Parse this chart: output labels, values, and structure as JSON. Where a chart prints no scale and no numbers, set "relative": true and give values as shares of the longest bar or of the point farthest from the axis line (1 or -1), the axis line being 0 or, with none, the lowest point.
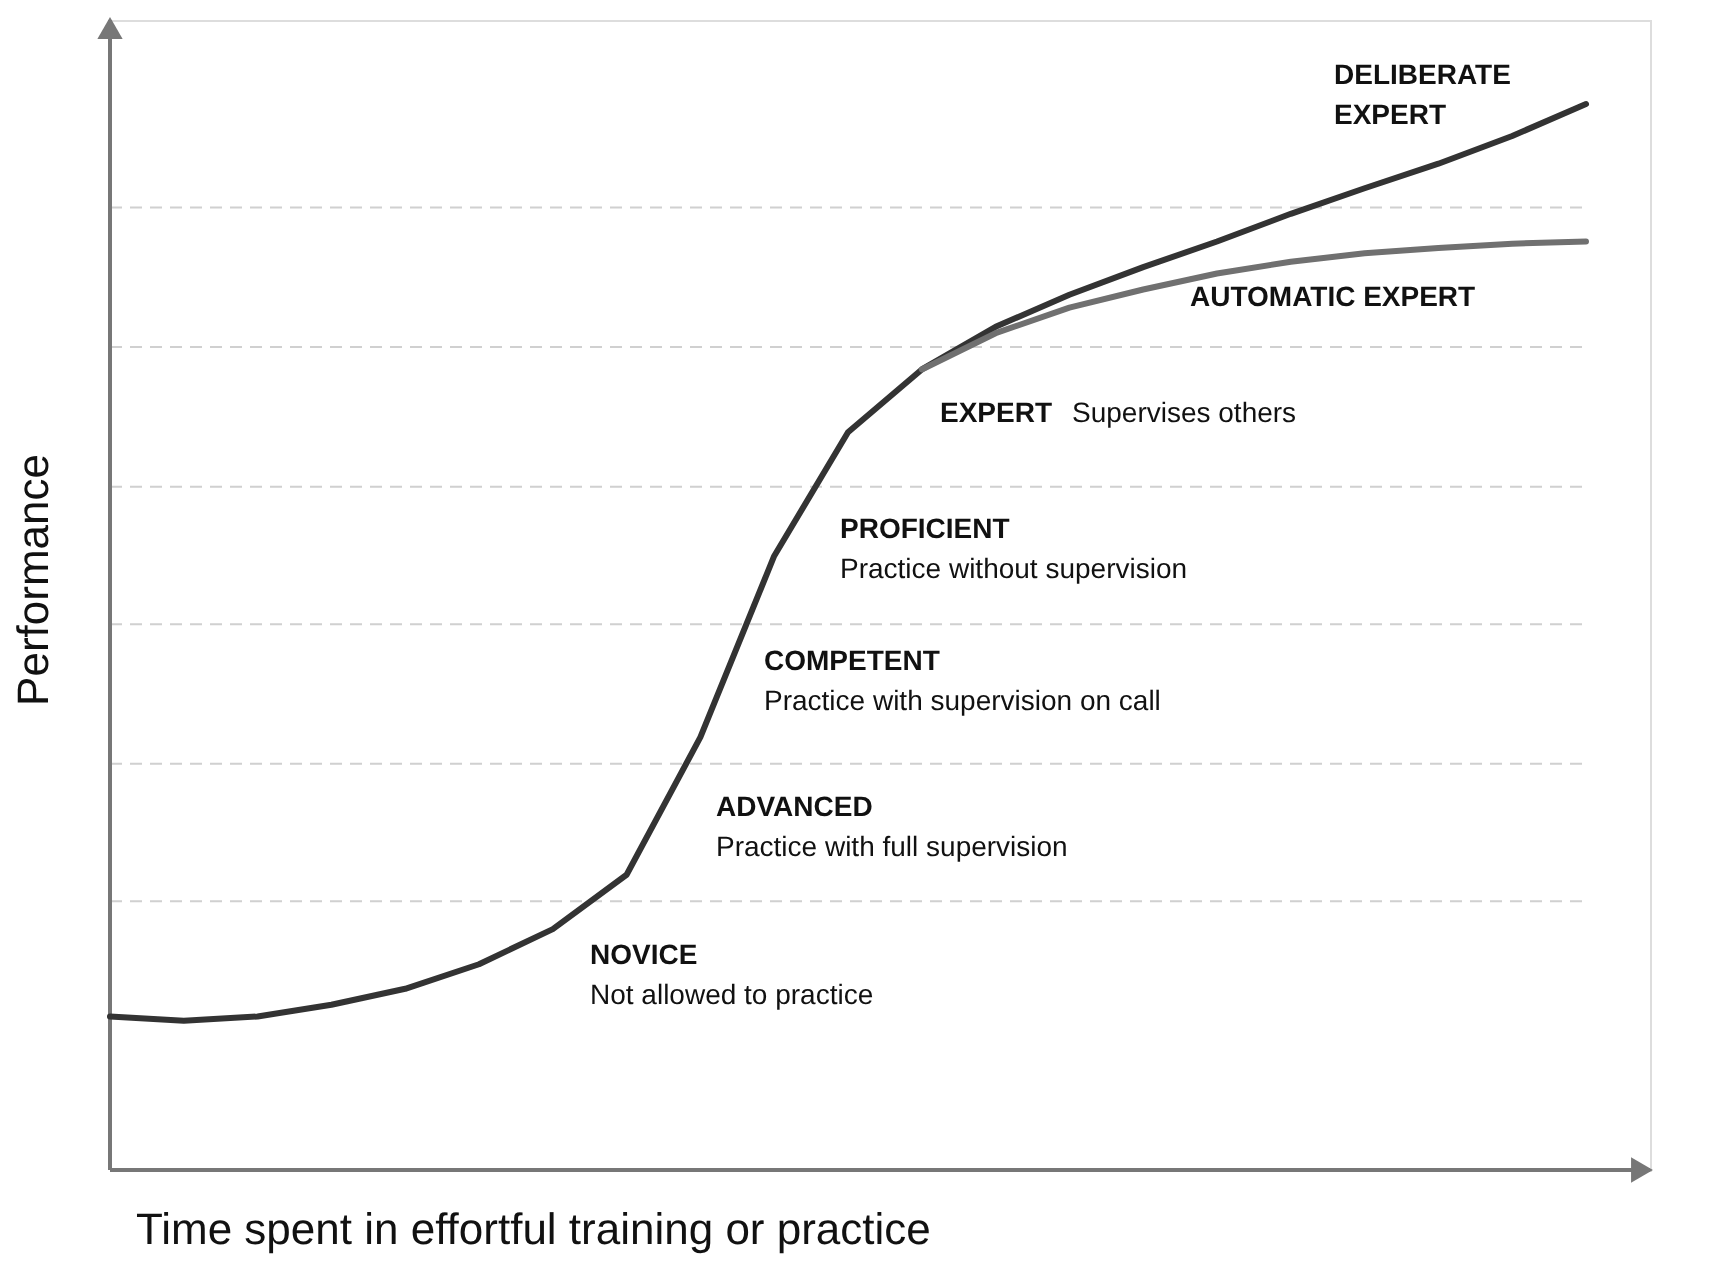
{
  "chart_data": {
    "type": "line",
    "relative": true,
    "xlabel": "Time spent in effortful training or practice",
    "ylabel": "Performance",
    "categories": [
      null,
      null,
      null,
      null,
      null,
      null,
      null,
      null,
      null,
      null,
      null,
      null,
      null,
      null,
      null,
      null,
      null,
      null,
      null,
      null,
      null
    ],
    "series": [
      {
        "name": "DELIBERATE EXPERT",
        "color": "#333333",
        "values": [
          0.144,
          0.14,
          0.144,
          0.155,
          0.17,
          0.193,
          0.226,
          0.277,
          0.406,
          0.576,
          0.692,
          0.751,
          0.791,
          0.821,
          0.847,
          0.871,
          0.897,
          0.921,
          0.944,
          0.97,
          1.0
        ]
      },
      {
        "name": "AUTOMATIC EXPERT",
        "color": "#707070",
        "values": [
          null,
          null,
          null,
          null,
          null,
          null,
          null,
          null,
          null,
          null,
          null,
          0.751,
          0.785,
          0.809,
          0.826,
          0.841,
          0.852,
          0.86,
          0.865,
          0.869,
          0.871
        ]
      }
    ],
    "ref_lines": [
      {
        "axis": "y",
        "value": 0.903,
        "color": "#d0d0d0",
        "line_style": "dashed"
      },
      {
        "axis": "y",
        "value": 0.772,
        "color": "#d0d0d0",
        "line_style": "dashed"
      },
      {
        "axis": "y",
        "value": 0.641,
        "color": "#d0d0d0",
        "line_style": "dashed"
      },
      {
        "axis": "y",
        "value": 0.512,
        "color": "#d0d0d0",
        "line_style": "dashed"
      },
      {
        "axis": "y",
        "value": 0.381,
        "color": "#d0d0d0",
        "line_style": "dashed"
      },
      {
        "axis": "y",
        "value": 0.252,
        "color": "#d0d0d0",
        "line_style": "dashed"
      }
    ],
    "annotations": [
      "NOVICE",
      "Not allowed to practice",
      "ADVANCED",
      "Practice with full supervision",
      "COMPETENT",
      "Practice with supervision on call",
      "PROFICIENT",
      "Practice without supervision",
      "EXPERT",
      "Supervises others"
    ],
    "line_style": "solid",
    "marker": "none"
  }
}
